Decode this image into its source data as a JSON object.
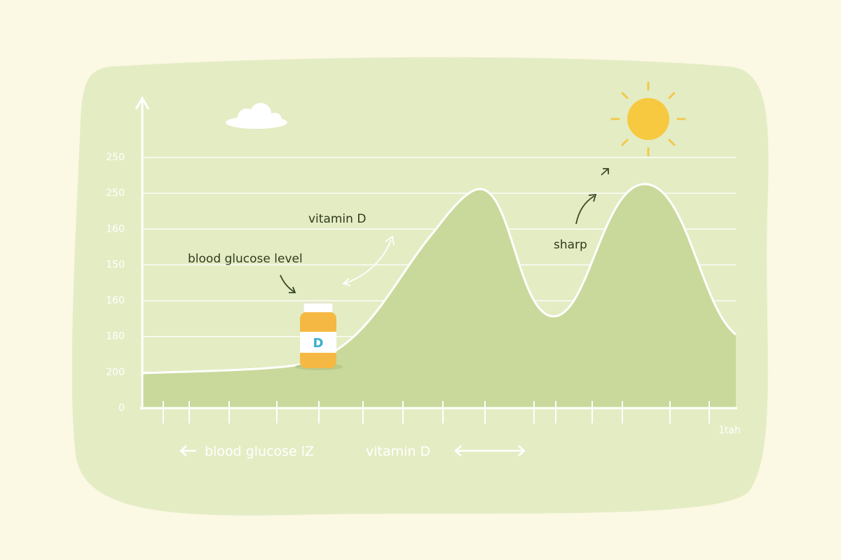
{
  "y_axis_labels": [
    "250",
    "250",
    "160",
    "150",
    "160",
    "180",
    "200",
    "0"
  ],
  "annotations": {
    "vitamin_d": "vitamin D",
    "glucose": "blood glucose level",
    "sharp": "sharp"
  },
  "bottle_label": "D",
  "footer": {
    "left": "blood glucose lZ",
    "right": "vitamin D"
  },
  "x_axis_end_label": "1tah"
}
